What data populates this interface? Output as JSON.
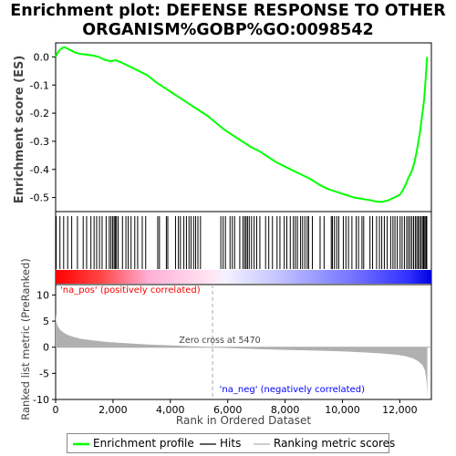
{
  "title_line1": "Enrichment plot: DEFENSE RESPONSE TO OTHER",
  "title_line2": "ORGANISM%GOBP%GO:0098542",
  "colors": {
    "es_line": "#00ff00",
    "hits": "#000000",
    "metric_fill": "#b0b0b0",
    "pos_label": "#ff0000",
    "neg_label": "#0000ff",
    "zero_line": "#aaaaaa"
  },
  "chart_data": [
    {
      "type": "line",
      "name": "enrichment-score-panel",
      "ylabel": "Enrichment score (ES)",
      "ylim": [
        -0.55,
        0.05
      ],
      "xlim": [
        0,
        13100
      ],
      "yticks": [
        0.0,
        -0.1,
        -0.2,
        -0.3,
        -0.4,
        -0.5
      ],
      "ytick_labels": [
        "0.0",
        "-0.1",
        "-0.2",
        "-0.3",
        "-0.4",
        "-0.5"
      ],
      "grid": false,
      "series": [
        {
          "name": "Enrichment profile",
          "x": [
            0,
            100,
            200,
            300,
            500,
            700,
            900,
            1100,
            1300,
            1500,
            1700,
            1900,
            2100,
            2300,
            2600,
            2900,
            3200,
            3500,
            3800,
            4100,
            4400,
            4700,
            5000,
            5300,
            5600,
            5900,
            6200,
            6500,
            6800,
            7100,
            7400,
            7700,
            8000,
            8300,
            8600,
            8900,
            9200,
            9500,
            9800,
            10100,
            10400,
            10700,
            11000,
            11200,
            11400,
            11600,
            11800,
            12000,
            12100,
            12200,
            12300,
            12400,
            12500,
            12600,
            12700,
            12800,
            12850,
            12900,
            12950
          ],
          "y": [
            0.0,
            0.02,
            0.03,
            0.035,
            0.025,
            0.015,
            0.01,
            0.008,
            0.005,
            0.0,
            -0.01,
            -0.015,
            -0.012,
            -0.02,
            -0.035,
            -0.05,
            -0.065,
            -0.09,
            -0.11,
            -0.13,
            -0.15,
            -0.17,
            -0.19,
            -0.21,
            -0.235,
            -0.26,
            -0.28,
            -0.3,
            -0.32,
            -0.335,
            -0.355,
            -0.375,
            -0.39,
            -0.405,
            -0.42,
            -0.435,
            -0.455,
            -0.47,
            -0.48,
            -0.49,
            -0.5,
            -0.505,
            -0.51,
            -0.515,
            -0.515,
            -0.51,
            -0.5,
            -0.49,
            -0.475,
            -0.455,
            -0.43,
            -0.41,
            -0.38,
            -0.33,
            -0.27,
            -0.19,
            -0.15,
            -0.08,
            0.0
          ]
        }
      ]
    },
    {
      "type": "hits",
      "name": "hits-panel",
      "xlim": [
        0,
        13100
      ],
      "positions": [
        20,
        150,
        280,
        420,
        560,
        760,
        960,
        1080,
        1230,
        1340,
        1430,
        1530,
        1620,
        1760,
        1870,
        1930,
        1990,
        2040,
        2080,
        2120,
        2180,
        2330,
        2450,
        2530,
        2630,
        2760,
        2860,
        3020,
        3140,
        3560,
        3620,
        3860,
        3910,
        4180,
        4280,
        4350,
        4470,
        4560,
        4650,
        4720,
        4810,
        4880,
        4960,
        5050,
        5760,
        5840,
        5920,
        6080,
        6160,
        6240,
        6420,
        6530,
        6590,
        6640,
        6690,
        6750,
        6830,
        6920,
        7010,
        7120,
        7320,
        7430,
        7560,
        7720,
        7820,
        7970,
        8060,
        8180,
        8290,
        8360,
        8430,
        8540,
        8610,
        8690,
        8770,
        8820,
        8950,
        9220,
        9360,
        9610,
        9650,
        9720,
        9800,
        9870,
        10030,
        10120,
        10210,
        10330,
        10480,
        10560,
        10680,
        10740,
        10960,
        11050,
        11190,
        11290,
        11370,
        11460,
        11560,
        11680,
        11760,
        11830,
        11910,
        12010,
        12080,
        12160,
        12240,
        12300,
        12360,
        12420,
        12480,
        12540,
        12590,
        12640,
        12690,
        12740,
        12790,
        12830,
        12870,
        12910,
        12940
      ]
    },
    {
      "type": "area",
      "name": "ranked-metric-panel",
      "ylabel": "Ranked list metric (PreRanked)",
      "xlabel": "Rank in Ordered Dataset",
      "xlim": [
        0,
        13100
      ],
      "ylim": [
        -10,
        12
      ],
      "xticks": [
        0,
        2000,
        4000,
        6000,
        8000,
        10000,
        12000
      ],
      "xtick_labels": [
        "0",
        "2,000",
        "4,000",
        "6,000",
        "8,000",
        "10,000",
        "12,000"
      ],
      "yticks": [
        10,
        5,
        0,
        -5,
        -10
      ],
      "ytick_labels": [
        "10",
        "5",
        "0",
        "-5",
        "-10"
      ],
      "zero_cross": 5470,
      "zero_cross_label": "Zero cross at 5470",
      "pos_label": "'na_pos' (positively correlated)",
      "neg_label": "'na_neg' (negatively correlated)",
      "x": [
        0,
        30,
        80,
        150,
        250,
        400,
        600,
        900,
        1300,
        1800,
        2500,
        3300,
        4200,
        5000,
        5470,
        6000,
        7000,
        8000,
        9000,
        10000,
        10800,
        11400,
        11900,
        12200,
        12450,
        12650,
        12800,
        12880,
        12930,
        12960
      ],
      "y": [
        6.5,
        4.8,
        4.0,
        3.4,
        2.9,
        2.4,
        2.0,
        1.6,
        1.3,
        1.0,
        0.75,
        0.5,
        0.3,
        0.12,
        0.0,
        -0.15,
        -0.35,
        -0.5,
        -0.65,
        -0.8,
        -1.0,
        -1.2,
        -1.45,
        -1.7,
        -2.1,
        -2.7,
        -3.5,
        -4.5,
        -6.5,
        -9.3
      ]
    }
  ],
  "legend": {
    "profile_label": "Enrichment profile",
    "hits_label": "Hits",
    "metric_label": "Ranking metric scores"
  }
}
